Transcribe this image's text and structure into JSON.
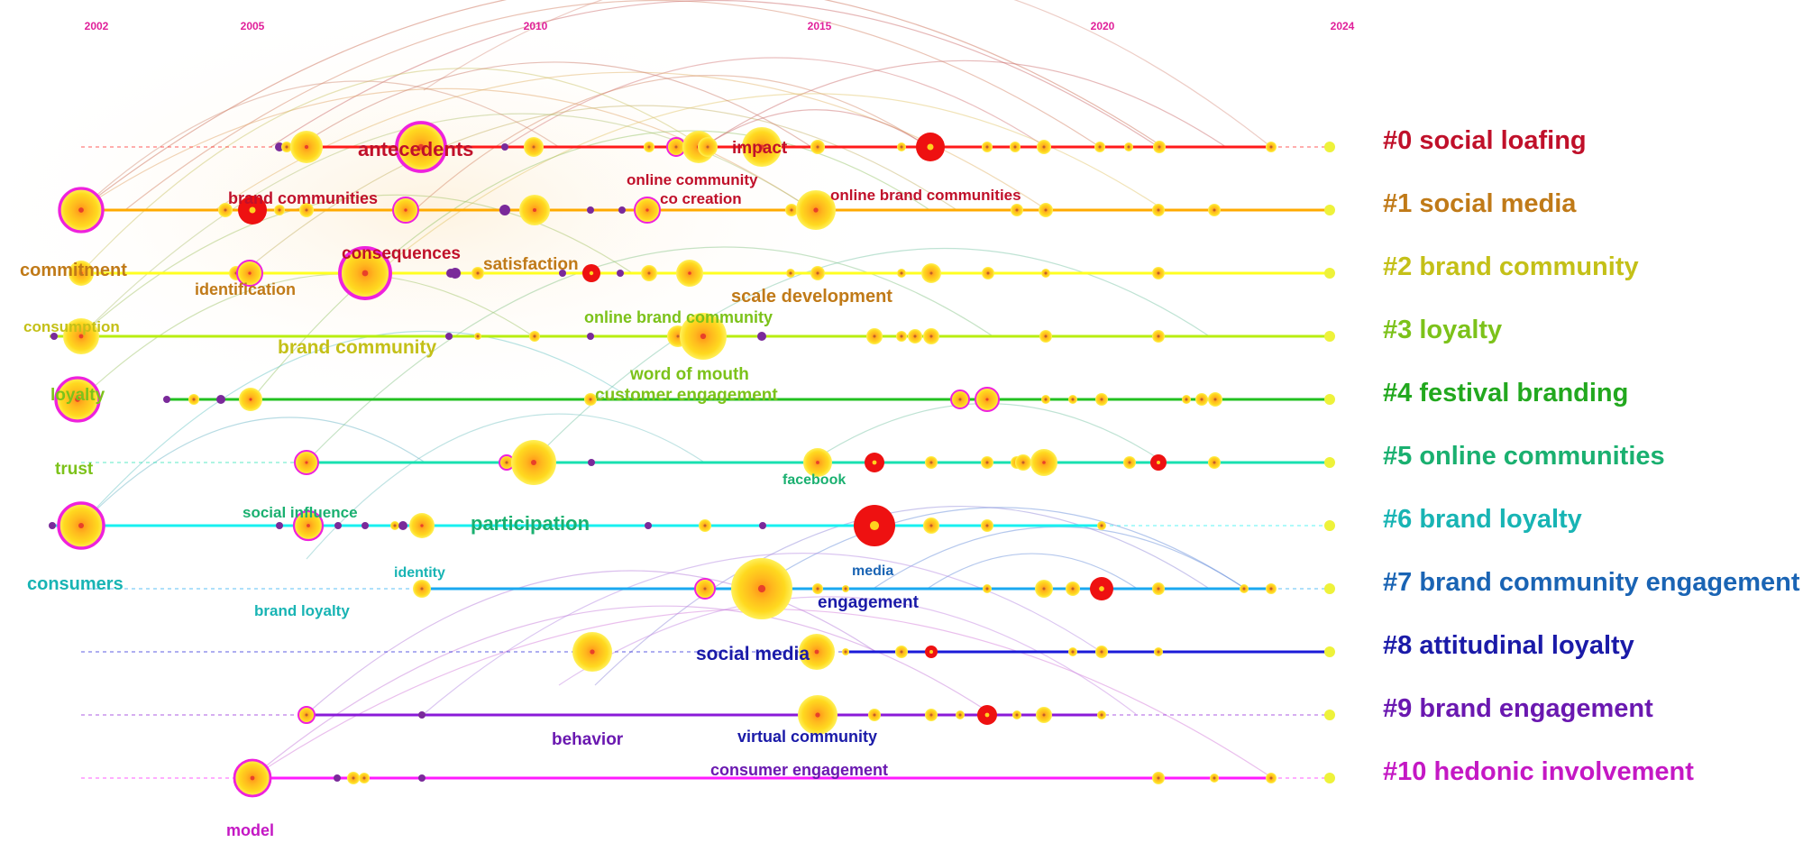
{
  "timeline": {
    "year_labels": [
      "2002",
      "2005",
      "2010",
      "2015",
      "2020",
      "2024"
    ],
    "year_label_color": "#e0209a"
  },
  "clusters": [
    {
      "id": 0,
      "label": "#0 social loafing",
      "line_color": "#ff1a1a",
      "label_color": "#c0102a"
    },
    {
      "id": 1,
      "label": "#1 social media",
      "line_color": "#ffaa00",
      "label_color": "#c07a18"
    },
    {
      "id": 2,
      "label": "#2 brand community",
      "line_color": "#ffff20",
      "label_color": "#c4c018"
    },
    {
      "id": 3,
      "label": "#3 loyalty",
      "line_color": "#b8ee10",
      "label_color": "#7cc21a"
    },
    {
      "id": 4,
      "label": "#4 festival branding",
      "line_color": "#22c020",
      "label_color": "#22a81e"
    },
    {
      "id": 5,
      "label": "#5 online communities",
      "line_color": "#18e0b0",
      "label_color": "#1ab070"
    },
    {
      "id": 6,
      "label": "#6 brand loyalty",
      "line_color": "#18f0f0",
      "label_color": "#18b4b4"
    },
    {
      "id": 7,
      "label": "#7 brand community engagement",
      "line_color": "#1aa8f0",
      "label_color": "#1a64b4"
    },
    {
      "id": 8,
      "label": "#8 attitudinal loyalty",
      "line_color": "#1a1ad8",
      "label_color": "#1a1aa8"
    },
    {
      "id": 9,
      "label": "#9 brand engagement",
      "line_color": "#8a1ad8",
      "label_color": "#6a18b0"
    },
    {
      "id": 10,
      "label": "#10 hedonic involvement",
      "line_color": "#ff1aff",
      "label_color": "#c418c4"
    }
  ],
  "keywords": [
    {
      "text": "antecedents",
      "color": "#c0102a"
    },
    {
      "text": "impact",
      "color": "#c0102a"
    },
    {
      "text": "brand communities",
      "color": "#c0102a"
    },
    {
      "text": "online community",
      "color": "#c0102a"
    },
    {
      "text": "co creation",
      "color": "#c0102a"
    },
    {
      "text": "online brand communities",
      "color": "#c0102a"
    },
    {
      "text": "commitment",
      "color": "#c07a18"
    },
    {
      "text": "consequences",
      "color": "#c0102a"
    },
    {
      "text": "satisfaction",
      "color": "#c07a18"
    },
    {
      "text": "identification",
      "color": "#c07a18"
    },
    {
      "text": "scale development",
      "color": "#c07a18"
    },
    {
      "text": "consumption",
      "color": "#c4c018"
    },
    {
      "text": "online brand community",
      "color": "#7cc21a"
    },
    {
      "text": "brand community",
      "color": "#c4c018"
    },
    {
      "text": "loyalty",
      "color": "#7cc21a"
    },
    {
      "text": "word of mouth",
      "color": "#7cc21a"
    },
    {
      "text": "customer engagement",
      "color": "#7cc21a"
    },
    {
      "text": "trust",
      "color": "#7cc21a"
    },
    {
      "text": "facebook",
      "color": "#1ab070"
    },
    {
      "text": "social influence",
      "color": "#1ab070"
    },
    {
      "text": "participation",
      "color": "#1ab070"
    },
    {
      "text": "identity",
      "color": "#18b4b4"
    },
    {
      "text": "media",
      "color": "#1a64b4"
    },
    {
      "text": "consumers",
      "color": "#18b4b4"
    },
    {
      "text": "engagement",
      "color": "#1a1aa8"
    },
    {
      "text": "brand loyalty",
      "color": "#18b4b4"
    },
    {
      "text": "social media",
      "color": "#1a1aa8"
    },
    {
      "text": "behavior",
      "color": "#6a18b0"
    },
    {
      "text": "virtual community",
      "color": "#1a1aa8"
    },
    {
      "text": "consumer engagement",
      "color": "#6a18b0"
    },
    {
      "text": "model",
      "color": "#c418c4"
    }
  ]
}
